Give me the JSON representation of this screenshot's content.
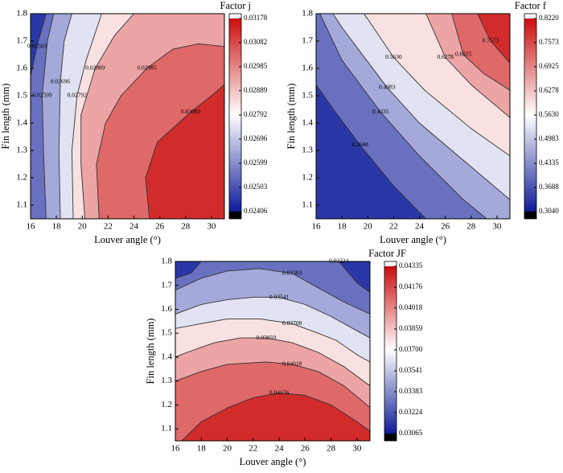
{
  "chart_data": [
    {
      "type": "contour",
      "title": "Factor j",
      "xlabel": "Louver angle (°)",
      "ylabel": "Fin length (mm)",
      "xlim": [
        16,
        31
      ],
      "xticks": [
        16,
        18,
        20,
        22,
        24,
        26,
        28,
        30
      ],
      "ylim": [
        1.05,
        1.8
      ],
      "yticks": [
        1.1,
        1.2,
        1.3,
        1.4,
        1.5,
        1.6,
        1.7,
        1.8
      ],
      "colors": [
        "#0d1a99",
        "#ffffff",
        "#cc0d0d"
      ],
      "colorbar_ticks": [
        0.02406,
        0.02503,
        0.02599,
        0.02696,
        0.02792,
        0.02889,
        0.02985,
        0.03082,
        0.03178
      ],
      "contours": [
        {
          "level": 0.02503,
          "x": [
            16,
            16.5,
            17.2
          ],
          "y": [
            1.57,
            1.68,
            1.8
          ]
        },
        {
          "level": 0.02599,
          "x": [
            17.2,
            17.0,
            16.9,
            17.3,
            17.8
          ],
          "y": [
            1.05,
            1.3,
            1.5,
            1.7,
            1.8
          ]
        },
        {
          "level": 0.02696,
          "x": [
            18.3,
            18.2,
            18.3,
            18.6,
            19.2
          ],
          "y": [
            1.05,
            1.3,
            1.55,
            1.7,
            1.8
          ]
        },
        {
          "level": 0.02792,
          "x": [
            19.3,
            19.2,
            19.6,
            20.3,
            21.5
          ],
          "y": [
            1.05,
            1.3,
            1.5,
            1.63,
            1.8
          ]
        },
        {
          "level": 0.02889,
          "x": [
            20.2,
            19.9,
            19.9,
            21,
            22.5,
            24
          ],
          "y": [
            1.05,
            1.25,
            1.43,
            1.6,
            1.72,
            1.8
          ]
        },
        {
          "level": 0.02985,
          "x": [
            21.3,
            21.1,
            21.8,
            23,
            25,
            27,
            29,
            31
          ],
          "y": [
            1.05,
            1.25,
            1.4,
            1.5,
            1.6,
            1.67,
            1.69,
            1.68
          ]
        },
        {
          "level": 0.03082,
          "x": [
            25.2,
            24.9,
            25.8,
            28.4,
            30,
            31
          ],
          "y": [
            1.05,
            1.2,
            1.33,
            1.44,
            1.5,
            1.54
          ]
        }
      ]
    },
    {
      "type": "contour",
      "title": "Factor f",
      "xlabel": "Louver angle (°)",
      "ylabel": "Fin length (mm)",
      "xlim": [
        16,
        31
      ],
      "xticks": [
        16,
        18,
        20,
        22,
        24,
        26,
        28,
        30
      ],
      "ylim": [
        1.05,
        1.8
      ],
      "yticks": [
        1.1,
        1.2,
        1.3,
        1.4,
        1.5,
        1.6,
        1.7,
        1.8
      ],
      "colors": [
        "#0d1a99",
        "#ffffff",
        "#cc0d0d"
      ],
      "colorbar_ticks": [
        {
          "value": 0.304,
          "label": "0.3040"
        },
        0.3688,
        0.4335,
        0.4983,
        {
          "value": 0.563,
          "label": "0.5630"
        },
        0.6278,
        0.6925,
        0.7573,
        {
          "value": 0.822,
          "label": "0.8220"
        }
      ],
      "contours": [
        {
          "level": 0.3688,
          "x": [
            24.5,
            22,
            19.4,
            17.5,
            16
          ],
          "y": [
            1.05,
            1.17,
            1.32,
            1.44,
            1.54
          ]
        },
        {
          "level": 0.4335,
          "x": [
            29.2,
            27.4,
            24,
            21,
            18,
            16.3
          ],
          "y": [
            1.05,
            1.12,
            1.28,
            1.44,
            1.63,
            1.8
          ]
        },
        {
          "level": 0.4983,
          "x": [
            31,
            28,
            24,
            21.5,
            19.9,
            18,
            17.3
          ],
          "y": [
            1.12,
            1.24,
            1.4,
            1.53,
            1.63,
            1.75,
            1.8
          ]
        },
        {
          "level": 0.563,
          "label": "0.5630",
          "x": [
            31,
            28,
            24.4,
            22,
            20,
            19.7
          ],
          "y": [
            1.28,
            1.38,
            1.52,
            1.64,
            1.78,
            1.8
          ]
        },
        {
          "level": 0.6278,
          "x": [
            31,
            28,
            26,
            24.5
          ],
          "y": [
            1.42,
            1.54,
            1.64,
            1.8
          ]
        },
        {
          "level": 0.6925,
          "x": [
            31,
            29,
            27.4,
            26.5
          ],
          "y": [
            1.52,
            1.58,
            1.65,
            1.8
          ]
        },
        {
          "level": 0.7573,
          "x": [
            31,
            29.5,
            28.5
          ],
          "y": [
            1.62,
            1.7,
            1.8
          ]
        }
      ]
    },
    {
      "type": "contour",
      "title": "Factor JF",
      "xlabel": "Louver angle (°)",
      "ylabel": "Fin length (mm)",
      "xlim": [
        16,
        31
      ],
      "xticks": [
        16,
        18,
        20,
        22,
        24,
        26,
        28,
        30
      ],
      "ylim": [
        1.05,
        1.8
      ],
      "yticks": [
        1.1,
        1.2,
        1.3,
        1.4,
        1.5,
        1.6,
        1.7,
        1.8
      ],
      "colors": [
        "#0d1a99",
        "#ffffff",
        "#cc0d0d"
      ],
      "colorbar_ticks": [
        0.03065,
        0.03224,
        0.03383,
        0.03541,
        {
          "value": 0.037,
          "label": "0.03700"
        },
        0.03859,
        0.04018,
        0.04176,
        0.04335
      ],
      "contours": [
        {
          "level": 0.03224,
          "x": [
            16,
            17.2,
            18,
            null,
            28.6,
            30,
            31
          ],
          "y": [
            1.73,
            1.75,
            1.8,
            null,
            1.8,
            1.71,
            1.67
          ]
        },
        {
          "level": 0.03383,
          "x": [
            16,
            18,
            20,
            22.5,
            25,
            27,
            29,
            31
          ],
          "y": [
            1.68,
            1.73,
            1.76,
            1.77,
            1.75,
            1.69,
            1.63,
            1.58
          ]
        },
        {
          "level": 0.03541,
          "x": [
            16,
            18,
            20,
            22,
            24,
            26,
            28,
            30,
            31
          ],
          "y": [
            1.58,
            1.62,
            1.64,
            1.65,
            1.65,
            1.62,
            1.57,
            1.51,
            1.48
          ]
        },
        {
          "level": 0.037,
          "label": "0.03700",
          "x": [
            16,
            18,
            20,
            22.5,
            25,
            27,
            28.4,
            30,
            31
          ],
          "y": [
            1.52,
            1.54,
            1.56,
            1.56,
            1.54,
            1.5,
            1.47,
            1.41,
            1.38
          ]
        },
        {
          "level": 0.03859,
          "x": [
            16,
            16.9,
            19,
            21,
            23,
            25,
            27,
            29,
            31
          ],
          "y": [
            1.4,
            1.42,
            1.46,
            1.48,
            1.48,
            1.46,
            1.42,
            1.36,
            1.28
          ]
        },
        {
          "level": 0.04018,
          "x": [
            16,
            18,
            20,
            23,
            25,
            27,
            29,
            31
          ],
          "y": [
            1.3,
            1.34,
            1.37,
            1.38,
            1.37,
            1.34,
            1.28,
            1.19
          ]
        },
        {
          "level": 0.04176,
          "x": [
            16.5,
            18,
            20.1,
            22,
            24,
            26,
            28,
            30,
            31
          ],
          "y": [
            1.05,
            1.13,
            1.19,
            1.23,
            1.25,
            1.24,
            1.2,
            1.13,
            1.09
          ]
        }
      ]
    }
  ]
}
